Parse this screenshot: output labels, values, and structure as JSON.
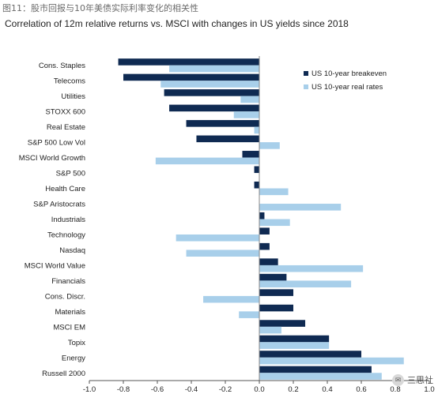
{
  "figure_caption": "图11：股市回报与10年美债实际利率变化的相关性",
  "chart_data": {
    "type": "bar",
    "orientation": "horizontal",
    "title": "Correlation of 12m relative returns vs. MSCI with changes in US yields since 2018",
    "xlabel": "",
    "ylabel": "",
    "xlim": [
      -1.0,
      1.0
    ],
    "x_ticks": [
      "-1.0",
      "-0.8",
      "-0.6",
      "-0.4",
      "-0.2",
      "0.0",
      "0.2",
      "0.4",
      "0.6",
      "0.8",
      "1.0"
    ],
    "grid": false,
    "legend_position": "top-right",
    "categories": [
      "Cons. Staples",
      "Telecoms",
      "Utilities",
      "STOXX 600",
      "Real Estate",
      "S&P 500 Low Vol",
      "MSCI World Growth",
      "S&P 500",
      "Health Care",
      "S&P Aristocrats",
      "Industrials",
      "Technology",
      "Nasdaq",
      "MSCI World Value",
      "Financials",
      "Cons. Discr.",
      "Materials",
      "MSCI EM",
      "Topix",
      "Energy",
      "Russell 2000"
    ],
    "series": [
      {
        "name": "US 10-year breakeven",
        "color": "#0f2a52",
        "values": [
          -0.83,
          -0.8,
          -0.56,
          -0.53,
          -0.43,
          -0.37,
          -0.1,
          -0.03,
          -0.03,
          0.0,
          0.03,
          0.06,
          0.06,
          0.11,
          0.16,
          0.2,
          0.2,
          0.27,
          0.41,
          0.6,
          0.66
        ]
      },
      {
        "name": "US 10-year real rates",
        "color": "#a8cfea",
        "values": [
          -0.53,
          -0.58,
          -0.11,
          -0.15,
          -0.03,
          0.12,
          -0.61,
          0.0,
          0.17,
          0.48,
          0.18,
          -0.49,
          -0.43,
          0.61,
          0.54,
          -0.33,
          -0.12,
          0.13,
          0.41,
          0.85,
          0.72
        ]
      }
    ]
  },
  "watermark": {
    "text": "三思社",
    "icon": "wechat-icon"
  }
}
